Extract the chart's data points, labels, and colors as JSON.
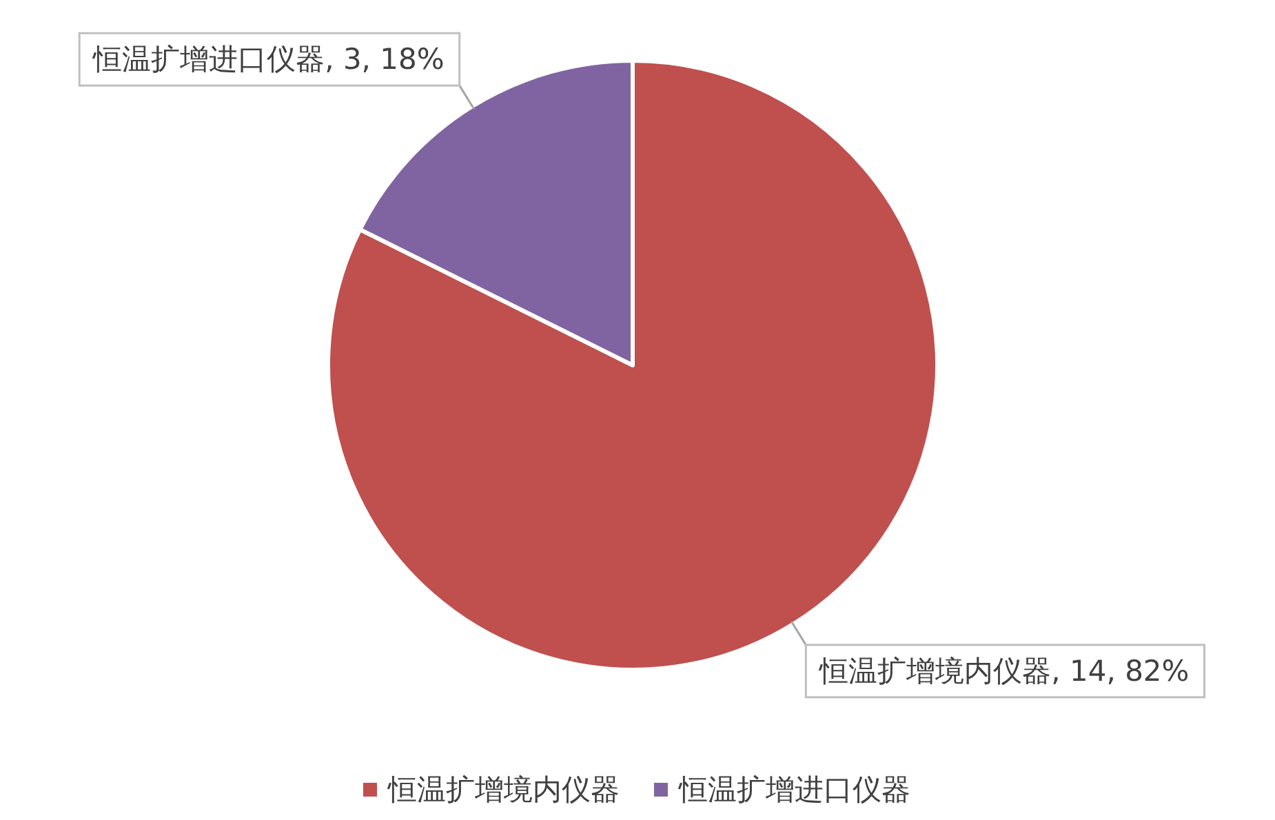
{
  "chart_data": {
    "type": "pie",
    "categories": [
      "恒温扩增境内仪器",
      "恒温扩增进口仪器"
    ],
    "values": [
      14,
      3
    ],
    "colors": [
      "#c0504d",
      "#8064a2"
    ],
    "value_labels": [
      "恒温扩增境内仪器, 14, 82%",
      "恒温扩增进口仪器, 3, 18%"
    ],
    "legend": "bottom"
  }
}
